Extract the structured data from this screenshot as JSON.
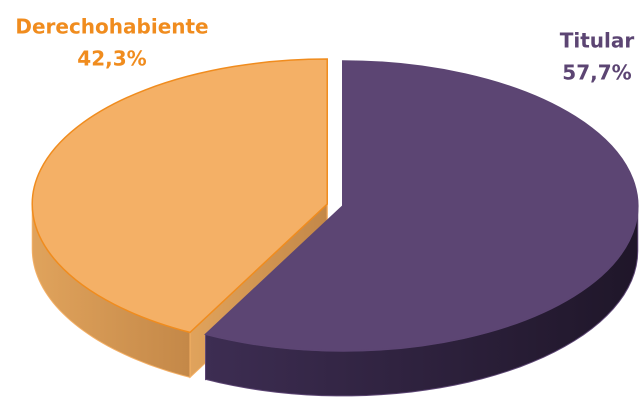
{
  "chart_data": {
    "type": "pie",
    "three_d": true,
    "categories": [
      "Titular",
      "Derechohabiente"
    ],
    "values": [
      57.7,
      42.3
    ],
    "value_labels": [
      "57,7%",
      "42,3%"
    ],
    "colors": [
      "#5c4573",
      "#f4b066"
    ]
  }
}
